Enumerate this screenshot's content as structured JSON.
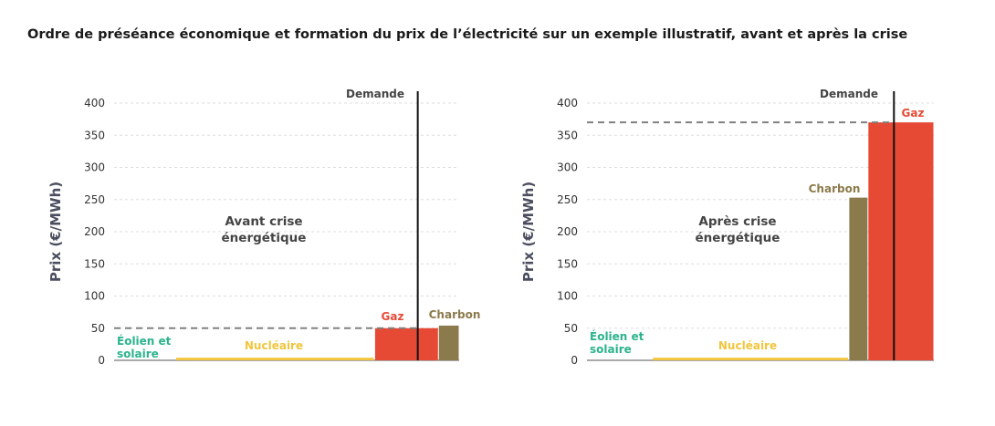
{
  "title": "Ordre de préséance économique et formation du prix de l’électricité sur un exemple illustratif, avant et après la crise",
  "colors": {
    "eolien": "#2bb38d",
    "nucleaire": "#f2c53d",
    "gaz": "#e64a35",
    "charbon": "#8b7a4b",
    "demand": "#111111",
    "price_line": "#808080",
    "grid": "#dddddd"
  },
  "chart_data": [
    {
      "type": "bar",
      "ylabel": "Prix (€/MWh)",
      "ylim": [
        0,
        400
      ],
      "yticks": [
        0,
        50,
        100,
        150,
        200,
        250,
        300,
        350,
        400
      ],
      "x_range": [
        0,
        100
      ],
      "annotation": [
        "Avant crise",
        "énergétique"
      ],
      "demand_label": "Demande",
      "demand_x": 88,
      "price_level": 50,
      "segments": [
        {
          "key": "eolien",
          "label": [
            "Éolien et",
            "solaire"
          ],
          "x0": 0,
          "x1": 18,
          "value": 0
        },
        {
          "key": "nucleaire",
          "label": [
            "Nucléaire"
          ],
          "x0": 18,
          "x1": 75.5,
          "value": 4
        },
        {
          "key": "gaz",
          "label": [
            "Gaz"
          ],
          "x0": 75.5,
          "x1": 94,
          "value": 50
        },
        {
          "key": "charbon",
          "label": [
            "Charbon"
          ],
          "x0": 94,
          "x1": 100,
          "value": 54
        }
      ]
    },
    {
      "type": "bar",
      "ylabel": "Prix (€/MWh)",
      "ylim": [
        0,
        400
      ],
      "yticks": [
        0,
        50,
        100,
        150,
        200,
        250,
        300,
        350,
        400
      ],
      "x_range": [
        0,
        100
      ],
      "annotation": [
        "Après crise",
        "énergétique"
      ],
      "demand_label": "Demande",
      "demand_x": 88.5,
      "price_level": 370,
      "segments": [
        {
          "key": "eolien",
          "label": [
            "Éolien et",
            "solaire"
          ],
          "x0": 0,
          "x1": 19,
          "value": 0
        },
        {
          "key": "nucleaire",
          "label": [
            "Nucléaire"
          ],
          "x0": 19,
          "x1": 75.5,
          "value": 4
        },
        {
          "key": "charbon",
          "label": [
            "Charbon"
          ],
          "x0": 75.5,
          "x1": 81,
          "value": 253
        },
        {
          "key": "gaz",
          "label": [
            "Gaz"
          ],
          "x0": 81,
          "x1": 100,
          "value": 370
        }
      ]
    }
  ]
}
